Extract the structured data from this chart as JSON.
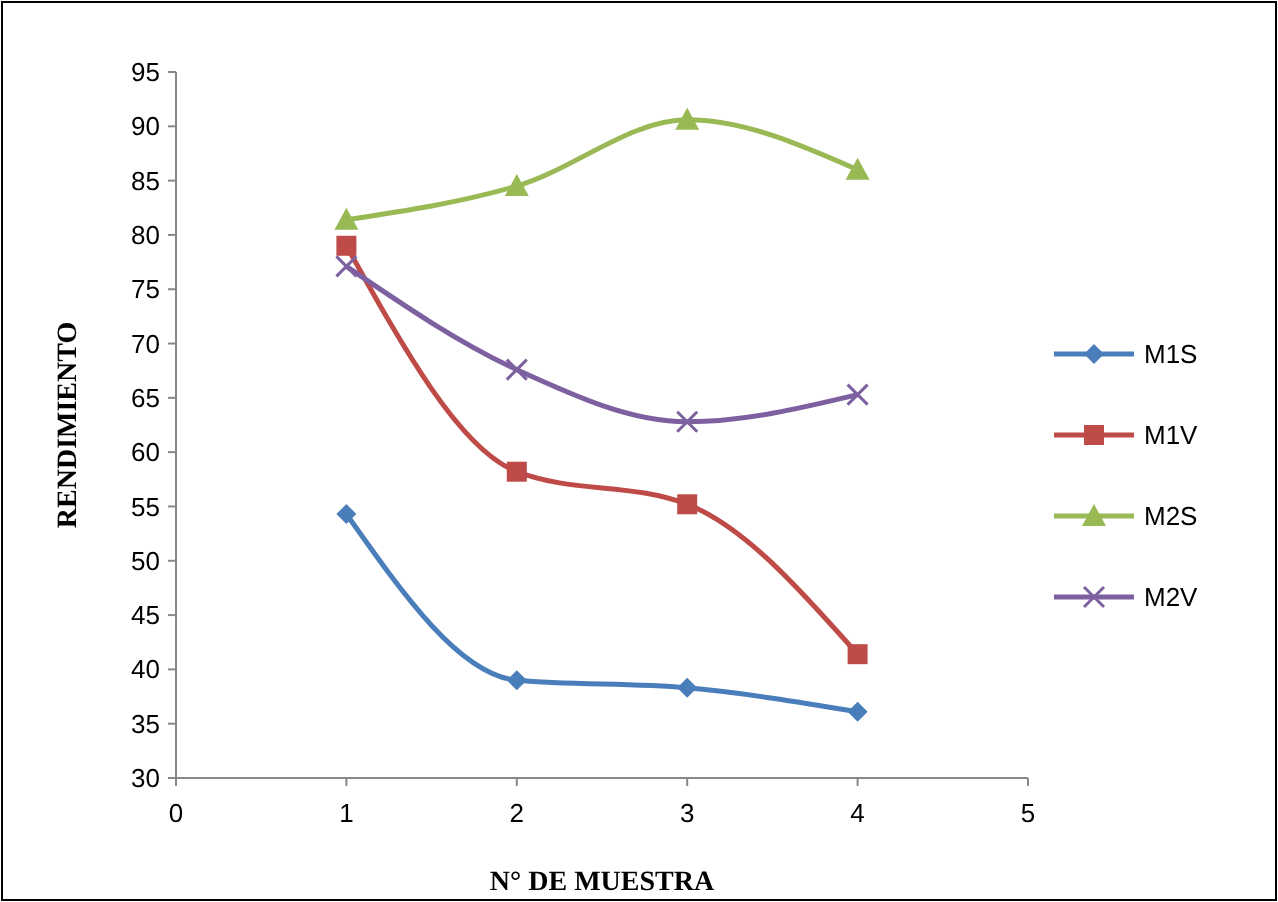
{
  "chart_data": {
    "type": "line",
    "xlabel": "N° DE MUESTRA",
    "ylabel": "RENDIMIENTO",
    "x": [
      1,
      2,
      3,
      4
    ],
    "xlim": [
      0,
      5
    ],
    "xticks": [
      0,
      1,
      2,
      3,
      4,
      5
    ],
    "ylim": [
      30,
      95
    ],
    "yticks": [
      30,
      35,
      40,
      45,
      50,
      55,
      60,
      65,
      70,
      75,
      80,
      85,
      90,
      95
    ],
    "grid": false,
    "legend": "right",
    "series": [
      {
        "name": "M1S",
        "color": "#4a7ebb",
        "marker": "diamond",
        "values": [
          54.3,
          39.0,
          38.3,
          36.1
        ]
      },
      {
        "name": "M1V",
        "color": "#be4b48",
        "marker": "square",
        "values": [
          79.0,
          58.2,
          55.2,
          41.4
        ]
      },
      {
        "name": "M2S",
        "color": "#98b954",
        "marker": "triangle",
        "values": [
          81.4,
          84.5,
          90.6,
          86.0
        ]
      },
      {
        "name": "M2V",
        "color": "#7d60a0",
        "marker": "cross",
        "values": [
          77.1,
          67.6,
          62.8,
          65.3
        ]
      }
    ]
  }
}
